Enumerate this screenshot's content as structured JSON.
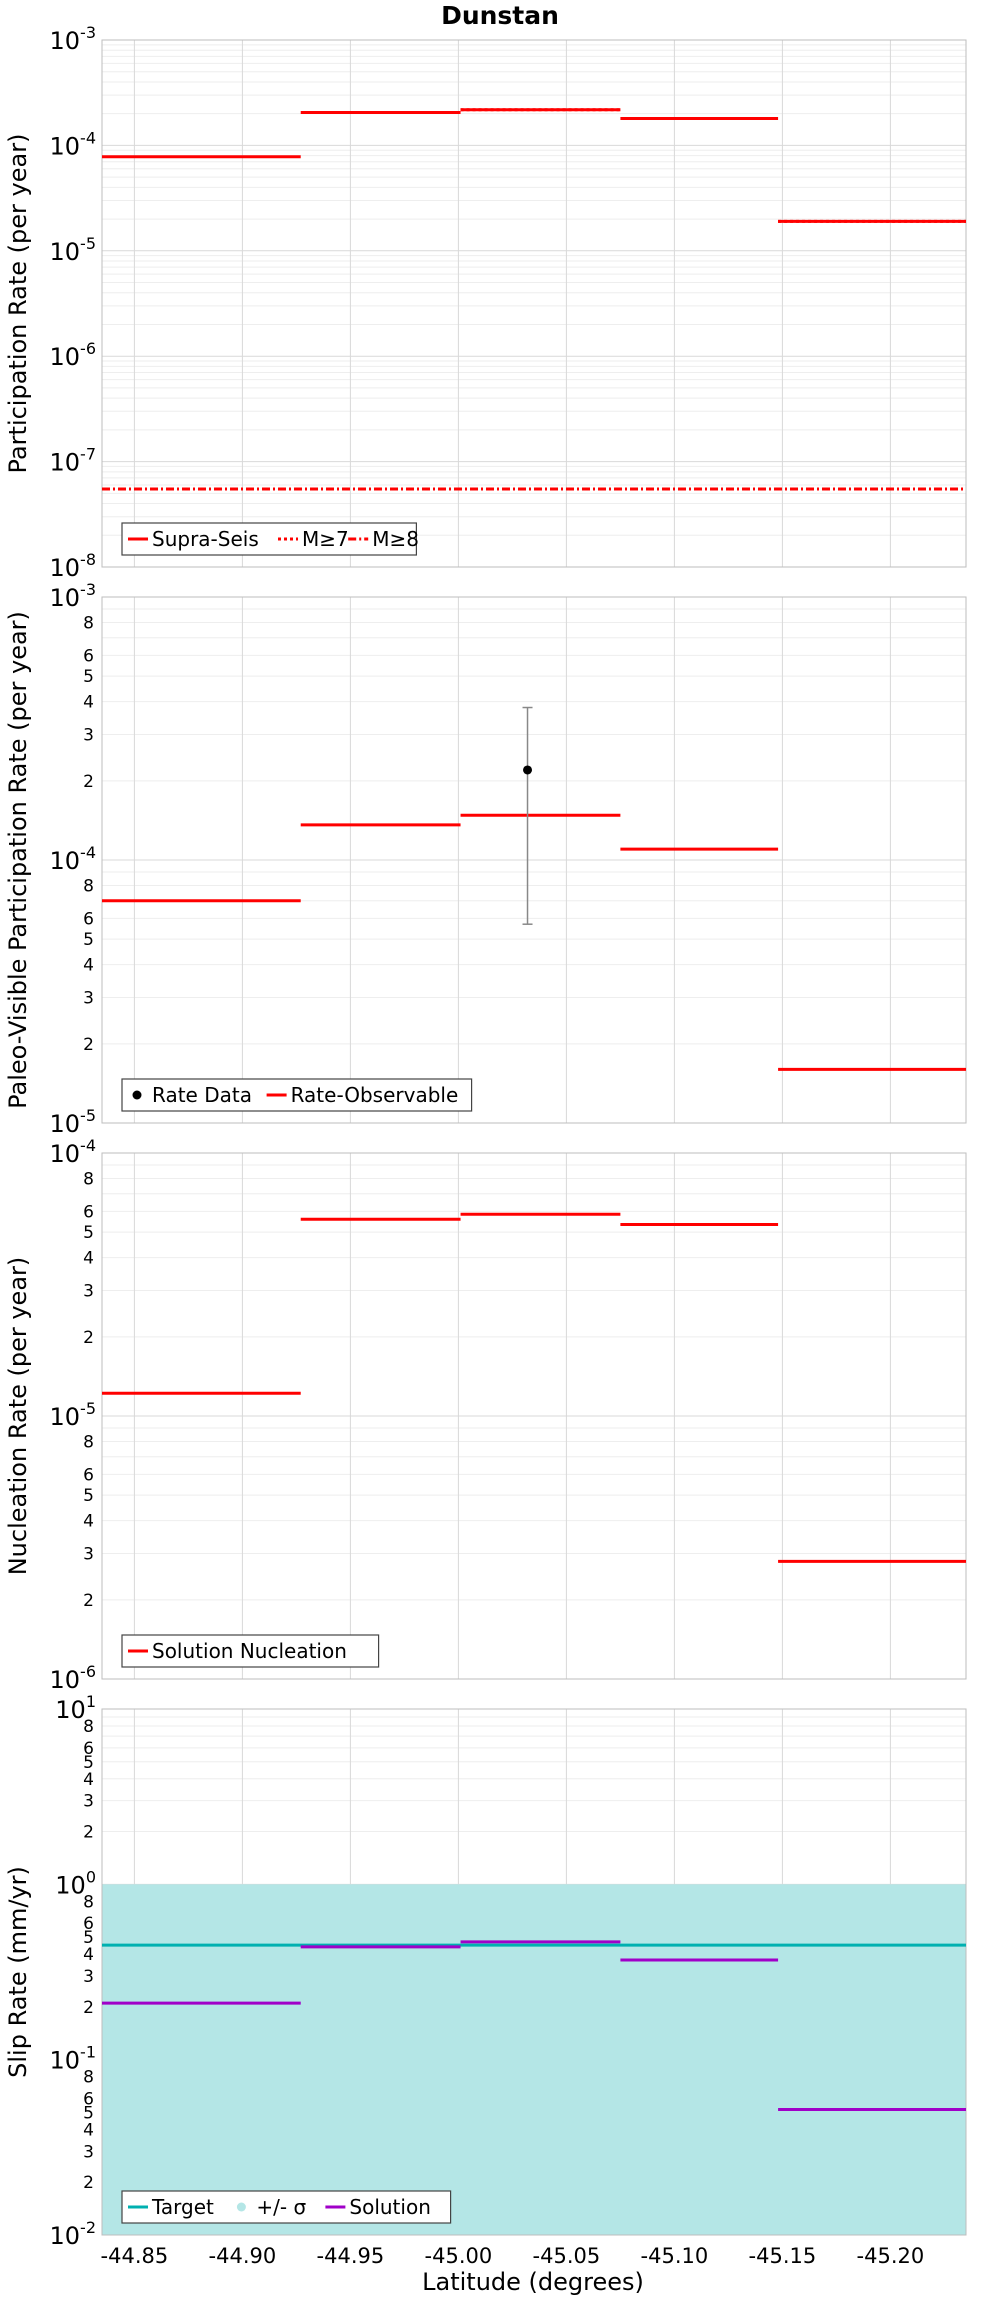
{
  "chart_data": [
    {
      "type": "line",
      "title": "Dunstan",
      "ylabel": "Participation Rate (per year)",
      "yscale": "log",
      "ylim": [
        1e-08,
        0.001
      ],
      "xlim": [
        -44.835,
        -45.235
      ],
      "x_tick_labels": [
        "-44.85",
        "-44.90",
        "-44.95",
        "-45.00",
        "-45.05",
        "-45.10",
        "-45.15",
        "-45.20"
      ],
      "legend_position": "bottom-left",
      "series": [
        {
          "name": "Supra-Seis",
          "color": "#ff0000",
          "dash": "solid",
          "segments": [
            {
              "x": [
                -44.835,
                -44.927
              ],
              "y": 7.8e-05
            },
            {
              "x": [
                -44.927,
                -45.001
              ],
              "y": 0.000205
            },
            {
              "x": [
                -45.001,
                -45.075
              ],
              "y": 0.000218
            },
            {
              "x": [
                -45.075,
                -45.148
              ],
              "y": 0.00018
            },
            {
              "x": [
                -45.148,
                -45.235
              ],
              "y": 1.9e-05
            }
          ]
        },
        {
          "name": "M≥7",
          "color": "#ff0000",
          "dash": "dotted",
          "segments": [
            {
              "x": [
                -45.001,
                -45.075
              ],
              "y": 0.000218
            },
            {
              "x": [
                -45.148,
                -45.235
              ],
              "y": 1.9e-05
            }
          ]
        },
        {
          "name": "M≥8",
          "color": "#ff0000",
          "dash": "dashdot",
          "segments": [
            {
              "x": [
                -44.835,
                -45.235
              ],
              "y": 5.5e-08
            }
          ]
        }
      ]
    },
    {
      "type": "line",
      "ylabel": "Paleo-Visible Participation Rate (per year)",
      "yscale": "log",
      "ylim": [
        1e-05,
        0.001
      ],
      "xlim": [
        -44.835,
        -45.235
      ],
      "legend_position": "bottom-left",
      "series": [
        {
          "name": "Rate Data",
          "color": "#000000",
          "type": "scatter",
          "points": [
            {
              "x": -45.032,
              "y": 0.00022,
              "yerr_low": 5.7e-05,
              "yerr_high": 0.00038
            }
          ]
        },
        {
          "name": "Rate-Observable",
          "color": "#ff0000",
          "dash": "solid",
          "segments": [
            {
              "x": [
                -44.835,
                -44.927
              ],
              "y": 7e-05
            },
            {
              "x": [
                -44.927,
                -45.001
              ],
              "y": 0.000136
            },
            {
              "x": [
                -45.001,
                -45.075
              ],
              "y": 0.000148
            },
            {
              "x": [
                -45.075,
                -45.148
              ],
              "y": 0.00011
            },
            {
              "x": [
                -45.148,
                -45.235
              ],
              "y": 1.6e-05
            }
          ]
        }
      ]
    },
    {
      "type": "line",
      "ylabel": "Nucleation Rate (per year)",
      "yscale": "log",
      "ylim": [
        1e-06,
        0.0001
      ],
      "xlim": [
        -44.835,
        -45.235
      ],
      "legend_position": "bottom-left",
      "series": [
        {
          "name": "Solution Nucleation",
          "color": "#ff0000",
          "dash": "solid",
          "segments": [
            {
              "x": [
                -44.835,
                -44.927
              ],
              "y": 1.22e-05
            },
            {
              "x": [
                -44.927,
                -45.001
              ],
              "y": 5.6e-05
            },
            {
              "x": [
                -45.001,
                -45.075
              ],
              "y": 5.85e-05
            },
            {
              "x": [
                -45.075,
                -45.148
              ],
              "y": 5.35e-05
            },
            {
              "x": [
                -45.148,
                -45.235
              ],
              "y": 2.8e-06
            }
          ]
        }
      ]
    },
    {
      "type": "line",
      "ylabel": "Slip Rate (mm/yr)",
      "xlabel": "Latitude (degrees)",
      "yscale": "log",
      "ylim": [
        0.01,
        10
      ],
      "xlim": [
        -44.835,
        -45.235
      ],
      "legend_position": "bottom-left",
      "series": [
        {
          "name": "Target",
          "color": "#00b0b0",
          "dash": "solid",
          "segments": [
            {
              "x": [
                -44.835,
                -45.235
              ],
              "y": 0.45
            }
          ]
        },
        {
          "name": "+/- σ",
          "color": "#b4e6e6",
          "type": "band",
          "band": {
            "x": [
              -44.835,
              -45.235
            ],
            "y_low": 0.01,
            "y_high": 1.0
          }
        },
        {
          "name": "Solution",
          "color": "#a000c8",
          "dash": "solid",
          "segments": [
            {
              "x": [
                -44.835,
                -44.927
              ],
              "y": 0.21
            },
            {
              "x": [
                -44.927,
                -45.001
              ],
              "y": 0.44
            },
            {
              "x": [
                -45.001,
                -45.075
              ],
              "y": 0.47
            },
            {
              "x": [
                -45.075,
                -45.148
              ],
              "y": 0.37
            },
            {
              "x": [
                -45.148,
                -45.235
              ],
              "y": 0.052
            }
          ]
        }
      ]
    }
  ]
}
